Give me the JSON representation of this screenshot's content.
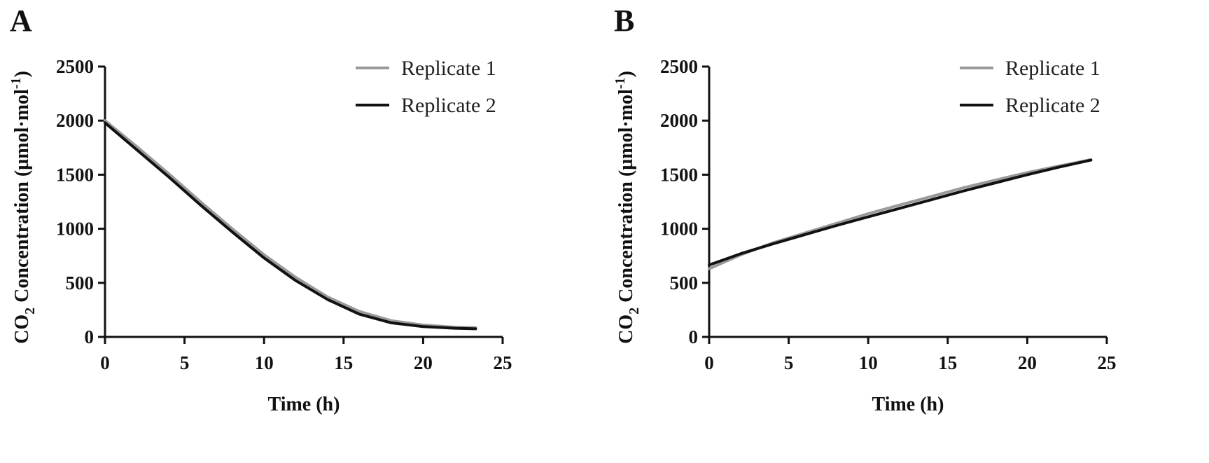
{
  "chart_data": [
    {
      "type": "line",
      "panel_label": "A",
      "xlabel": "Time (h)",
      "ylabel_parts": {
        "co": "CO",
        "sub": "2",
        "mid": " Concentration (µmol·mol",
        "sup": "-1",
        "end": ")"
      },
      "xlim": [
        0,
        25
      ],
      "ylim": [
        0,
        2500
      ],
      "xticks": [
        0,
        5,
        10,
        15,
        20,
        25
      ],
      "yticks": [
        0,
        500,
        1000,
        1500,
        2000,
        2500
      ],
      "legend_position": "top-right",
      "series": [
        {
          "name": "Replicate 1",
          "color": "#9a9a9a",
          "x": [
            0,
            2,
            4,
            6,
            8,
            10,
            12,
            14,
            16,
            18,
            20,
            22,
            23.3
          ],
          "y": [
            2000,
            1760,
            1510,
            1250,
            1000,
            760,
            550,
            370,
            235,
            150,
            110,
            90,
            85
          ]
        },
        {
          "name": "Replicate 2",
          "color": "#111111",
          "x": [
            0,
            2,
            4,
            6,
            8,
            10,
            12,
            14,
            16,
            18,
            20,
            22,
            23.3
          ],
          "y": [
            1980,
            1730,
            1480,
            1220,
            970,
            730,
            520,
            345,
            210,
            130,
            95,
            80,
            75
          ]
        }
      ]
    },
    {
      "type": "line",
      "panel_label": "B",
      "xlabel": "Time (h)",
      "ylabel_parts": {
        "co": "CO",
        "sub": "2",
        "mid": " Concentration (µmol·mol",
        "sup": "-1",
        "end": ")"
      },
      "xlim": [
        0,
        25
      ],
      "ylim": [
        0,
        2500
      ],
      "xticks": [
        0,
        5,
        10,
        15,
        20,
        25
      ],
      "yticks": [
        0,
        500,
        1000,
        1500,
        2000,
        2500
      ],
      "legend_position": "top-right",
      "series": [
        {
          "name": "Replicate 1",
          "color": "#9a9a9a",
          "x": [
            0,
            2,
            4,
            6,
            8,
            10,
            12,
            14,
            16,
            18,
            20,
            22,
            24
          ],
          "y": [
            630,
            760,
            870,
            960,
            1050,
            1140,
            1220,
            1300,
            1380,
            1450,
            1520,
            1580,
            1640
          ]
        },
        {
          "name": "Replicate 2",
          "color": "#111111",
          "x": [
            0,
            2,
            4,
            6,
            8,
            10,
            12,
            14,
            16,
            18,
            20,
            22,
            24
          ],
          "y": [
            665,
            770,
            860,
            945,
            1030,
            1110,
            1190,
            1270,
            1350,
            1425,
            1500,
            1570,
            1635
          ]
        }
      ]
    }
  ]
}
